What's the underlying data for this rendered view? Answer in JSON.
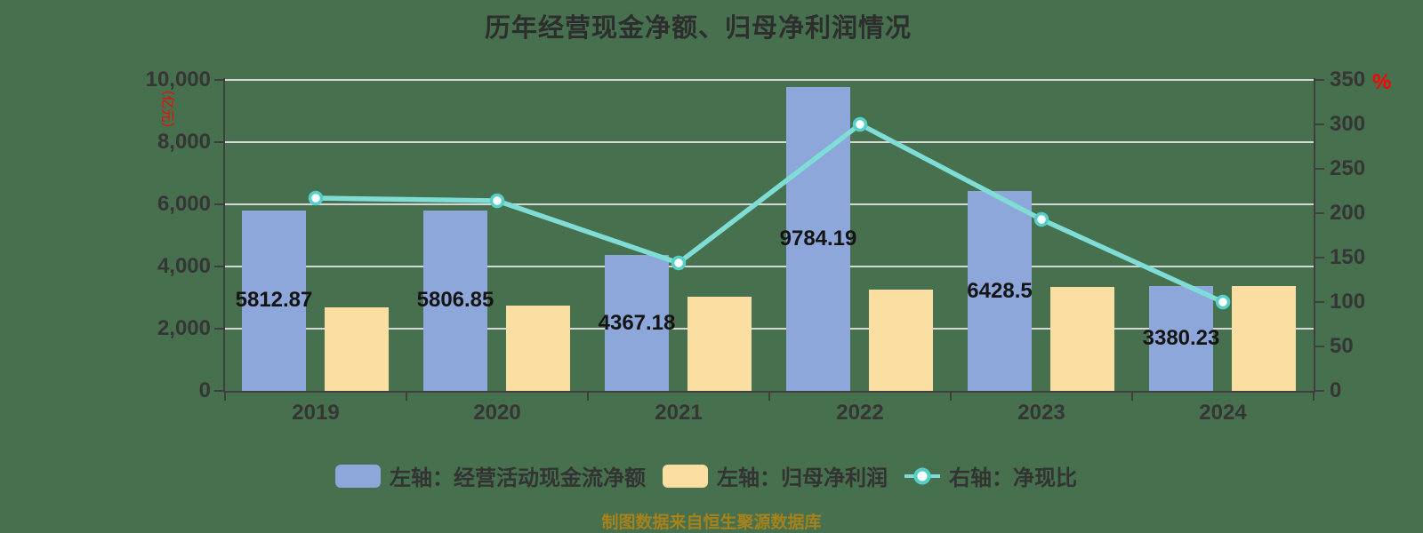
{
  "title": "历年经营现金净额、归母净利润情况",
  "caption": "制图数据来自恒生聚源数据库",
  "colors": {
    "background": "#47704E",
    "bar_blue": "#8DA7DA",
    "bar_yellow": "#FBDFA2",
    "line_teal": "#7FDDD6",
    "marker_ring": "#55CFC8",
    "marker_fill": "#FFFFFF",
    "axis": "#3F3F3F",
    "gridline": "#D6D6D6",
    "unit_red": "#FF0000",
    "caption_gold": "#A5821C"
  },
  "left_axis": {
    "unit": "（亿元）",
    "min": 0,
    "max": 10000,
    "tick_labels": [
      "10,000",
      "8,000",
      "6,000",
      "4,000",
      "2,000",
      "0"
    ]
  },
  "right_axis": {
    "unit": "%",
    "min": 0,
    "max": 350,
    "tick_labels": [
      "350",
      "300",
      "250",
      "200",
      "150",
      "100",
      "50",
      "0"
    ]
  },
  "chart_data": {
    "type": "bar",
    "title": "历年经营现金净额、归母净利润情况",
    "categories": [
      "2019",
      "2020",
      "2021",
      "2022",
      "2023",
      "2024"
    ],
    "series": [
      {
        "name": "左轴：经营活动现金流净额",
        "type": "bar",
        "axis": "left",
        "color": "#8DA7DA",
        "values": [
          5812.87,
          5806.85,
          4367.18,
          9784.19,
          6428.5,
          3380.23
        ],
        "labels": [
          "5812.87",
          "5806.85",
          "4367.18",
          "9784.19",
          "6428.5",
          "3380.23"
        ]
      },
      {
        "name": "左轴：归母净利润",
        "type": "bar",
        "axis": "left",
        "color": "#FBDFA2",
        "values": [
          2680,
          2730,
          3040,
          3270,
          3340,
          3370
        ],
        "estimated": true
      },
      {
        "name": "右轴：净现比",
        "type": "line",
        "axis": "right",
        "color": "#7FDDD6",
        "values": [
          217,
          214,
          144,
          300,
          193,
          100
        ],
        "estimated": true
      }
    ],
    "left_ylim": [
      0,
      10000
    ],
    "right_ylim": [
      0,
      350
    ],
    "grid": true,
    "legend_position": "bottom",
    "xlabel": "",
    "ylabel": "（亿元）",
    "ylabel_right": "%"
  }
}
